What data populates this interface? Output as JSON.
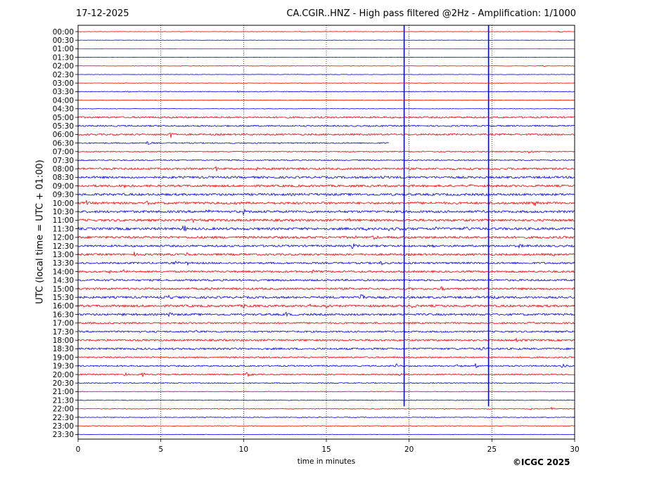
{
  "header": {
    "date": "17-12-2025",
    "title": "CA.CGIR..HNZ - High pass filtered @2Hz - Amplification: 1/1000"
  },
  "footer": {
    "copyright": "©ICGC 2025"
  },
  "chart_data": {
    "type": "line",
    "title": "CA.CGIR..HNZ - High pass filtered @2Hz - Amplification: 1/1000",
    "xlabel": "time in minutes",
    "ylabel": "UTC (local time = UTC + 01:00)",
    "xlim": [
      0,
      30
    ],
    "x_ticks": [
      0,
      5,
      10,
      15,
      20,
      25,
      30
    ],
    "grid": "vertical dotted lines at every 5 minutes",
    "row_labels": [
      "00:00",
      "00:30",
      "01:00",
      "01:30",
      "02:00",
      "02:30",
      "03:00",
      "03:30",
      "04:00",
      "04:30",
      "05:00",
      "05:30",
      "06:00",
      "06:30",
      "07:00",
      "07:30",
      "08:00",
      "08:30",
      "09:00",
      "09:30",
      "10:00",
      "10:30",
      "11:00",
      "11:30",
      "12:00",
      "12:30",
      "13:00",
      "13:30",
      "14:00",
      "14:30",
      "15:00",
      "15:30",
      "16:00",
      "16:30",
      "17:00",
      "17:30",
      "18:00",
      "18:30",
      "19:00",
      "19:30",
      "20:00",
      "20:30",
      "21:00",
      "21:30",
      "22:00",
      "22:30",
      "23:00",
      "23:30"
    ],
    "trace_colors": [
      "#ff0000",
      "#0000ff"
    ],
    "vertical_spikes_minutes": [
      19.7,
      24.8
    ],
    "trace_end_row": "06:30",
    "trace_end_minute": 18.8,
    "noise_levels": [
      0.3,
      0.2,
      0.2,
      0.2,
      0.3,
      0.3,
      0.3,
      0.5,
      0.3,
      0.3,
      1.2,
      1.0,
      1.2,
      0.8,
      0.8,
      0.8,
      1.4,
      1.5,
      1.5,
      1.6,
      1.6,
      1.6,
      1.6,
      1.7,
      1.6,
      1.4,
      1.4,
      1.3,
      1.3,
      1.3,
      1.4,
      1.5,
      1.5,
      1.4,
      1.2,
      1.2,
      1.3,
      1.3,
      1.0,
      1.0,
      0.9,
      0.7,
      0.5,
      0.5,
      0.5,
      0.5,
      0.4,
      0.3
    ],
    "events": [
      {
        "row": "00:00",
        "minute": 29.1,
        "amplitude": 1.5
      },
      {
        "row": "02:00",
        "minute": 28.1,
        "amplitude": 1.5
      },
      {
        "row": "03:30",
        "minute": 3.1,
        "amplitude": 1.5
      },
      {
        "row": "03:30",
        "minute": 9.7,
        "amplitude": 1.5
      },
      {
        "row": "06:00",
        "minute": 5.6,
        "amplitude": 7
      },
      {
        "row": "06:30",
        "minute": 4.2,
        "amplitude": 4
      },
      {
        "row": "07:00",
        "minute": 27.3,
        "amplitude": 3
      },
      {
        "row": "08:00",
        "minute": 8.3,
        "amplitude": 3
      },
      {
        "row": "08:00",
        "minute": 10.8,
        "amplitude": 3
      },
      {
        "row": "08:00",
        "minute": 12.4,
        "amplitude": 3
      },
      {
        "row": "08:30",
        "minute": 5.8,
        "amplitude": 3
      },
      {
        "row": "08:30",
        "minute": 18.3,
        "amplitude": 2.5
      },
      {
        "row": "09:00",
        "minute": 2.8,
        "amplitude": 2
      },
      {
        "row": "09:00",
        "minute": 23.5,
        "amplitude": 3
      },
      {
        "row": "10:00",
        "minute": 0.5,
        "amplitude": 3
      },
      {
        "row": "10:00",
        "minute": 4.2,
        "amplitude": 3
      },
      {
        "row": "10:00",
        "minute": 8.0,
        "amplitude": 3
      },
      {
        "row": "10:00",
        "minute": 9.6,
        "amplitude": 3
      },
      {
        "row": "10:00",
        "minute": 27.6,
        "amplitude": 4
      },
      {
        "row": "10:00",
        "minute": 29.3,
        "amplitude": 3
      },
      {
        "row": "10:30",
        "minute": 7.8,
        "amplitude": 3
      },
      {
        "row": "10:30",
        "minute": 10.0,
        "amplitude": 3
      },
      {
        "row": "11:00",
        "minute": 6.9,
        "amplitude": 3
      },
      {
        "row": "11:00",
        "minute": 7.3,
        "amplitude": 3
      },
      {
        "row": "11:00",
        "minute": 16.3,
        "amplitude": 3
      },
      {
        "row": "11:30",
        "minute": 6.4,
        "amplitude": 6
      },
      {
        "row": "11:30",
        "minute": 17.5,
        "amplitude": 3
      },
      {
        "row": "11:30",
        "minute": 18.7,
        "amplitude": 4
      },
      {
        "row": "11:30",
        "minute": 19.4,
        "amplitude": 4
      },
      {
        "row": "11:30",
        "minute": 21.6,
        "amplitude": 3
      },
      {
        "row": "11:30",
        "minute": 23.4,
        "amplitude": 4
      },
      {
        "row": "12:00",
        "minute": 16.8,
        "amplitude": 3
      },
      {
        "row": "12:00",
        "minute": 17.9,
        "amplitude": 3
      },
      {
        "row": "12:30",
        "minute": 16.6,
        "amplitude": 4
      },
      {
        "row": "12:30",
        "minute": 21.5,
        "amplitude": 3
      },
      {
        "row": "12:30",
        "minute": 26.7,
        "amplitude": 3
      },
      {
        "row": "13:00",
        "minute": 3.4,
        "amplitude": 3
      },
      {
        "row": "13:00",
        "minute": 6.5,
        "amplitude": 3
      },
      {
        "row": "13:00",
        "minute": 28.7,
        "amplitude": 3
      },
      {
        "row": "13:30",
        "minute": 5.9,
        "amplitude": 3
      },
      {
        "row": "13:30",
        "minute": 6.6,
        "amplitude": 3
      },
      {
        "row": "13:30",
        "minute": 18.3,
        "amplitude": 3
      },
      {
        "row": "14:00",
        "minute": 0.5,
        "amplitude": 3
      },
      {
        "row": "14:00",
        "minute": 1.8,
        "amplitude": 3
      },
      {
        "row": "14:00",
        "minute": 2.7,
        "amplitude": 3
      },
      {
        "row": "14:00",
        "minute": 14.1,
        "amplitude": 3
      },
      {
        "row": "14:30",
        "minute": 1.9,
        "amplitude": 3
      },
      {
        "row": "14:30",
        "minute": 9.8,
        "amplitude": 2
      },
      {
        "row": "15:00",
        "minute": 8.0,
        "amplitude": 3
      },
      {
        "row": "15:00",
        "minute": 22.0,
        "amplitude": 4
      },
      {
        "row": "15:30",
        "minute": 5.4,
        "amplitude": 3
      },
      {
        "row": "15:30",
        "minute": 17.1,
        "amplitude": 9
      },
      {
        "row": "15:30",
        "minute": 25.2,
        "amplitude": 6
      },
      {
        "row": "15:30",
        "minute": 28.9,
        "amplitude": 3
      },
      {
        "row": "16:00",
        "minute": 10.0,
        "amplitude": 3
      },
      {
        "row": "16:00",
        "minute": 14.1,
        "amplitude": 3
      },
      {
        "row": "16:00",
        "minute": 15.0,
        "amplitude": 5
      },
      {
        "row": "16:00",
        "minute": 20.2,
        "amplitude": 3
      },
      {
        "row": "16:30",
        "minute": 2.7,
        "amplitude": 3
      },
      {
        "row": "16:30",
        "minute": 5.5,
        "amplitude": 3
      },
      {
        "row": "16:30",
        "minute": 12.6,
        "amplitude": 4
      },
      {
        "row": "17:00",
        "minute": 27.3,
        "amplitude": 3
      },
      {
        "row": "17:30",
        "minute": 7.1,
        "amplitude": 3
      },
      {
        "row": "18:00",
        "minute": 26.5,
        "amplitude": 3
      },
      {
        "row": "18:30",
        "minute": 9.2,
        "amplitude": 3
      },
      {
        "row": "18:30",
        "minute": 24.4,
        "amplitude": 3
      },
      {
        "row": "19:30",
        "minute": 19.2,
        "amplitude": 3
      },
      {
        "row": "19:30",
        "minute": 22.9,
        "amplitude": 3
      },
      {
        "row": "19:30",
        "minute": 24.0,
        "amplitude": 3
      },
      {
        "row": "19:30",
        "minute": 29.3,
        "amplitude": 3
      },
      {
        "row": "20:00",
        "minute": 2.8,
        "amplitude": 3
      },
      {
        "row": "20:00",
        "minute": 3.9,
        "amplitude": 3
      },
      {
        "row": "20:00",
        "minute": 10.2,
        "amplitude": 4
      },
      {
        "row": "20:00",
        "minute": 19.4,
        "amplitude": 3
      },
      {
        "row": "22:00",
        "minute": 27.3,
        "amplitude": 2
      },
      {
        "row": "22:00",
        "minute": 28.6,
        "amplitude": 3
      }
    ]
  }
}
